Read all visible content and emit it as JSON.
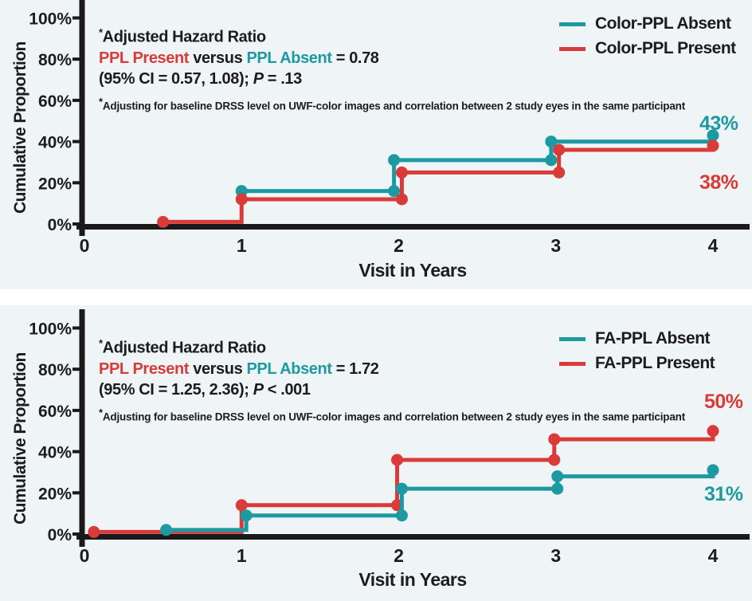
{
  "colors": {
    "absent": "#1d9aa1",
    "present": "#d93b38",
    "text": "#1b1b21",
    "axis": "#1a1a1a",
    "panel_bg": "#eff4f6",
    "divider": "#ffffff"
  },
  "annotations": [
    {
      "star": "*",
      "title": "Adjusted Hazard Ratio",
      "present": "PPL Present",
      "versus": " versus ",
      "absent": "PPL Absent",
      "result": " = 0.78",
      "ci": "(95% CI = 0.57, 1.08); ",
      "p": "P",
      "p_rest": " = .13",
      "footnote_star": "*",
      "footnote": "Adjusting for baseline DRSS level on UWF-color images and correlation between 2 study eyes in the same participant"
    },
    {
      "star": "*",
      "title": "Adjusted Hazard Ratio",
      "present": "PPL Present",
      "versus": " versus ",
      "absent": "PPL Absent",
      "result": " = 1.72",
      "ci": "(95% CI = 1.25, 2.36); ",
      "p": "P",
      "p_rest": " < .001",
      "footnote_star": "*",
      "footnote": "Adjusting for baseline DRSS level on UWF-color images and correlation between 2 study eyes in the same participant"
    }
  ],
  "chart_data": [
    {
      "type": "line",
      "line_style": "step-after",
      "panel": "top",
      "xlabel": "Visit in Years",
      "ylabel": "Cumulative Proportion",
      "xlim": [
        0,
        4
      ],
      "ylim": [
        0,
        100
      ],
      "x_ticks": [
        0,
        1,
        2,
        3,
        4
      ],
      "y_ticks": [
        0,
        20,
        40,
        60,
        80,
        100
      ],
      "y_tick_format": "percent",
      "grid": false,
      "legend_position": "top-right",
      "series": [
        {
          "name": "Color-PPL Absent",
          "color_key": "absent",
          "points": [
            [
              1,
              16
            ],
            [
              1.97,
              31
            ],
            [
              2.97,
              40
            ],
            [
              4,
              43
            ]
          ],
          "final_label": "43%"
        },
        {
          "name": "Color-PPL Present",
          "color_key": "present",
          "points": [
            [
              0.5,
              1
            ],
            [
              1,
              12
            ],
            [
              2.02,
              25
            ],
            [
              3.02,
              36
            ],
            [
              4,
              38
            ]
          ],
          "final_label": "38%"
        }
      ]
    },
    {
      "type": "line",
      "line_style": "step-after",
      "panel": "bottom",
      "xlabel": "Visit in Years",
      "ylabel": "Cumulative Proportion",
      "xlim": [
        0,
        4
      ],
      "ylim": [
        0,
        100
      ],
      "x_ticks": [
        0,
        1,
        2,
        3,
        4
      ],
      "y_ticks": [
        0,
        20,
        40,
        60,
        80,
        100
      ],
      "y_tick_format": "percent",
      "grid": false,
      "legend_position": "top-right",
      "series": [
        {
          "name": "FA-PPL Absent",
          "color_key": "absent",
          "points": [
            [
              0.52,
              2
            ],
            [
              1.03,
              9
            ],
            [
              2.02,
              22
            ],
            [
              3.01,
              28
            ],
            [
              4,
              31
            ]
          ],
          "final_label": "31%"
        },
        {
          "name": "FA-PPL Present",
          "color_key": "present",
          "points": [
            [
              0.06,
              1
            ],
            [
              1,
              14
            ],
            [
              1.99,
              36
            ],
            [
              2.99,
              46
            ],
            [
              4,
              50
            ]
          ],
          "final_label": "50%"
        }
      ]
    }
  ]
}
